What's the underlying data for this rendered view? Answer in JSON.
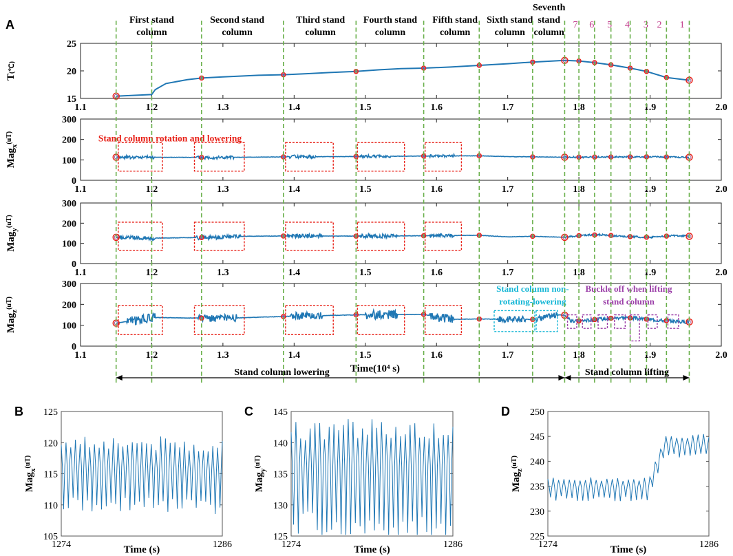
{
  "colors": {
    "line": "#1f77b4",
    "guide": "#6ab04c",
    "event_box": "#e8231a",
    "nonrot_box": "#17b7d6",
    "buckle_box": "#9b3fa8",
    "lift_numbers": "#c0398a",
    "ring": "#e8231a",
    "axis": "#222222"
  },
  "chart_data": [
    {
      "panel": "A",
      "type": "line",
      "xlabel": "Time(10⁴ s)",
      "xlim": [
        1.1,
        2.0
      ],
      "xticks": [
        "1.1",
        "1.2",
        "1.3",
        "1.4",
        "1.5",
        "1.6",
        "1.7",
        "1.8",
        "1.9",
        "2.0"
      ],
      "stage_labels": [
        {
          "x": 1.2,
          "lines": [
            "First stand",
            "column"
          ]
        },
        {
          "x": 1.32,
          "lines": [
            "Second stand",
            "column"
          ]
        },
        {
          "x": 1.437,
          "lines": [
            "Third  stand",
            "column"
          ]
        },
        {
          "x": 1.535,
          "lines": [
            "Fourth stand",
            "column"
          ]
        },
        {
          "x": 1.626,
          "lines": [
            "Fifth stand",
            "column"
          ]
        },
        {
          "x": 1.703,
          "lines": [
            "Sixth stand",
            "column"
          ]
        },
        {
          "x": 1.758,
          "lines": [
            "Seventh",
            "stand",
            "column"
          ]
        }
      ],
      "lift_numbers": [
        {
          "x": 1.795,
          "label": "7"
        },
        {
          "x": 1.818,
          "label": "6"
        },
        {
          "x": 1.843,
          "label": "5"
        },
        {
          "x": 1.868,
          "label": "4"
        },
        {
          "x": 1.894,
          "label": "3"
        },
        {
          "x": 1.913,
          "label": "2"
        },
        {
          "x": 1.945,
          "label": "1"
        }
      ],
      "guide_lines_x": [
        1.15,
        1.2,
        1.27,
        1.385,
        1.487,
        1.582,
        1.66,
        1.735,
        1.78,
        1.8,
        1.822,
        1.845,
        1.872,
        1.895,
        1.923,
        1.955
      ],
      "markers_x": [
        1.15,
        1.27,
        1.385,
        1.487,
        1.582,
        1.66,
        1.735,
        1.78,
        1.8,
        1.822,
        1.845,
        1.872,
        1.895,
        1.923,
        1.955
      ],
      "subplots": [
        {
          "id": "T",
          "ylabel_main": "T",
          "ylabel_unit": "(℃)",
          "ylim": [
            15,
            25
          ],
          "yticks": [
            "15",
            "20",
            "25"
          ],
          "series": {
            "x": [
              1.15,
              1.2,
              1.205,
              1.22,
              1.25,
              1.27,
              1.3,
              1.35,
              1.385,
              1.42,
              1.45,
              1.487,
              1.52,
              1.55,
              1.582,
              1.62,
              1.66,
              1.7,
              1.735,
              1.78,
              1.8,
              1.822,
              1.845,
              1.872,
              1.895,
              1.923,
              1.955
            ],
            "y": [
              15.4,
              15.7,
              16.6,
              17.7,
              18.4,
              18.7,
              18.9,
              19.2,
              19.3,
              19.5,
              19.7,
              19.9,
              20.2,
              20.4,
              20.5,
              20.7,
              21.0,
              21.3,
              21.6,
              21.9,
              21.8,
              21.5,
              21.1,
              20.5,
              19.9,
              18.8,
              18.3
            ]
          },
          "annotation": null,
          "boxes": []
        },
        {
          "id": "Magx",
          "ylabel_main": "Mag",
          "ylabel_sub": "x",
          "ylabel_unit": "(uT)",
          "ylim": [
            0,
            300
          ],
          "yticks": [
            "0",
            "100",
            "200",
            "300"
          ],
          "base": [
            [
              1.15,
              113
            ],
            [
              1.3,
              112
            ],
            [
              1.4,
              115
            ],
            [
              1.5,
              117
            ],
            [
              1.6,
              119
            ],
            [
              1.66,
              120
            ],
            [
              1.7,
              116
            ],
            [
              1.78,
              113
            ],
            [
              1.9,
              115
            ],
            [
              1.955,
              113
            ]
          ],
          "bursts": [
            [
              1.155,
              1.205,
              8
            ],
            [
              1.262,
              1.315,
              8
            ],
            [
              1.39,
              1.43,
              8
            ],
            [
              1.492,
              1.535,
              7
            ],
            [
              1.59,
              1.625,
              7
            ],
            [
              1.78,
              1.955,
              3
            ]
          ],
          "annotation": {
            "text": "Stand column rotation and lowering",
            "x": 1.125,
            "y": 190,
            "color": "event_box"
          },
          "boxes": [
            [
              1.153,
              1.215,
              45,
              185,
              "event_box"
            ],
            [
              1.26,
              1.33,
              45,
              185,
              "event_box"
            ],
            [
              1.388,
              1.455,
              45,
              185,
              "event_box"
            ],
            [
              1.489,
              1.555,
              45,
              185,
              "event_box"
            ],
            [
              1.584,
              1.635,
              45,
              185,
              "event_box"
            ]
          ]
        },
        {
          "id": "Magy",
          "ylabel_main": "Mag",
          "ylabel_sub": "y",
          "ylabel_unit": "(uT)",
          "ylim": [
            0,
            300
          ],
          "yticks": [
            "0",
            "100",
            "200",
            "300"
          ],
          "base": [
            [
              1.15,
              130
            ],
            [
              1.2,
              126
            ],
            [
              1.3,
              130
            ],
            [
              1.33,
              135
            ],
            [
              1.4,
              137
            ],
            [
              1.5,
              136
            ],
            [
              1.6,
              138
            ],
            [
              1.66,
              140
            ],
            [
              1.7,
              132
            ],
            [
              1.735,
              135
            ],
            [
              1.78,
              130
            ],
            [
              1.8,
              138
            ],
            [
              1.83,
              143
            ],
            [
              1.86,
              135
            ],
            [
              1.9,
              130
            ],
            [
              1.93,
              138
            ],
            [
              1.955,
              135
            ]
          ],
          "bursts": [
            [
              1.155,
              1.205,
              10
            ],
            [
              1.262,
              1.325,
              10
            ],
            [
              1.39,
              1.44,
              10
            ],
            [
              1.492,
              1.545,
              10
            ],
            [
              1.59,
              1.625,
              9
            ],
            [
              1.78,
              1.955,
              4
            ]
          ],
          "annotation": null,
          "boxes": [
            [
              1.153,
              1.215,
              65,
              205,
              "event_box"
            ],
            [
              1.26,
              1.33,
              65,
              205,
              "event_box"
            ],
            [
              1.388,
              1.455,
              65,
              205,
              "event_box"
            ],
            [
              1.489,
              1.555,
              65,
              205,
              "event_box"
            ],
            [
              1.584,
              1.635,
              65,
              205,
              "event_box"
            ]
          ]
        },
        {
          "id": "Magz",
          "ylabel_main": "Mag",
          "ylabel_sub": "z",
          "ylabel_unit": "(uT)",
          "ylim": [
            0,
            300
          ],
          "yticks": [
            "0",
            "100",
            "200",
            "300"
          ],
          "base": [
            [
              1.15,
              110
            ],
            [
              1.2,
              137
            ],
            [
              1.3,
              133
            ],
            [
              1.385,
              142
            ],
            [
              1.487,
              150
            ],
            [
              1.582,
              152
            ],
            [
              1.62,
              128
            ],
            [
              1.66,
              130
            ],
            [
              1.735,
              128
            ],
            [
              1.77,
              150
            ],
            [
              1.78,
              148
            ],
            [
              1.79,
              118
            ],
            [
              1.86,
              138
            ],
            [
              1.94,
              118
            ],
            [
              1.955,
              116
            ]
          ],
          "bursts": [
            [
              1.165,
              1.205,
              22
            ],
            [
              1.265,
              1.32,
              18
            ],
            [
              1.395,
              1.44,
              18
            ],
            [
              1.5,
              1.545,
              22
            ],
            [
              1.59,
              1.625,
              22
            ],
            [
              1.685,
              1.725,
              16
            ],
            [
              1.74,
              1.77,
              14
            ],
            [
              1.785,
              1.955,
              8
            ]
          ],
          "annotation": {
            "text": "",
            "x": 0,
            "y": 0
          },
          "annotation_lines": [
            {
              "text": "Stand column non-",
              "x": 1.735,
              "y": 260,
              "color": "nonrot_box"
            },
            {
              "text": "rotating-lowering",
              "x": 1.735,
              "y": 200,
              "color": "nonrot_box"
            },
            {
              "text": "Buckle off when lifting",
              "x": 1.87,
              "y": 260,
              "color": "buckle_box"
            },
            {
              "text": "stand column",
              "x": 1.87,
              "y": 200,
              "color": "buckle_box"
            }
          ],
          "boxes": [
            [
              1.153,
              1.215,
              55,
              195,
              "event_box"
            ],
            [
              1.26,
              1.33,
              55,
              195,
              "event_box"
            ],
            [
              1.388,
              1.455,
              55,
              195,
              "event_box"
            ],
            [
              1.489,
              1.555,
              55,
              195,
              "event_box"
            ],
            [
              1.584,
              1.635,
              55,
              195,
              "event_box"
            ],
            [
              1.681,
              1.738,
              70,
              170,
              "nonrot_box"
            ],
            [
              1.74,
              1.77,
              70,
              170,
              "nonrot_box"
            ],
            [
              1.784,
              1.797,
              85,
              150,
              "buckle_box"
            ],
            [
              1.805,
              1.817,
              85,
              150,
              "buckle_box"
            ],
            [
              1.827,
              1.84,
              85,
              150,
              "buckle_box"
            ],
            [
              1.85,
              1.865,
              85,
              150,
              "buckle_box"
            ],
            [
              1.872,
              1.885,
              25,
              150,
              "buckle_box"
            ],
            [
              1.897,
              1.91,
              85,
              150,
              "buckle_box"
            ],
            [
              1.925,
              1.94,
              85,
              150,
              "buckle_box"
            ]
          ]
        }
      ],
      "phases": [
        {
          "label": "Stand column lowering",
          "from": 1.15,
          "to": 1.78
        },
        {
          "label": "Stand column lifting",
          "from": 1.78,
          "to": 1.955
        }
      ]
    },
    {
      "panel": "B",
      "type": "line",
      "ylabel_main": "Mag",
      "ylabel_sub": "x",
      "ylabel_unit": "(uT)",
      "xlabel": "Time (s)",
      "xlim": [
        1274,
        1286
      ],
      "xticks": [
        "1274",
        "1286"
      ],
      "ylim": [
        105,
        125
      ],
      "yticks": [
        "105",
        "110",
        "115",
        "120",
        "125"
      ],
      "oscillation": {
        "cycles": 34,
        "mean": 115.3,
        "amplitude": 5.0,
        "trend": -0.8
      }
    },
    {
      "panel": "C",
      "type": "line",
      "ylabel_main": "Mag",
      "ylabel_sub": "y",
      "ylabel_unit": "(uT)",
      "xlabel": "Time (s)",
      "xlim": [
        1274,
        1286
      ],
      "xticks": [
        "1274",
        "1286"
      ],
      "ylim": [
        125,
        145
      ],
      "yticks": [
        "125",
        "130",
        "135",
        "140",
        "145"
      ],
      "oscillation": {
        "cycles": 34,
        "mean": 135.0,
        "amplitude": 7.2,
        "trend": 0
      }
    },
    {
      "panel": "D",
      "type": "line",
      "ylabel_main": "Mag",
      "ylabel_sub": "z",
      "ylabel_unit": "(uT)",
      "xlabel": "Time (s)",
      "xlim": [
        1274,
        1286
      ],
      "xticks": [
        "1274",
        "1286"
      ],
      "ylim": [
        225,
        250
      ],
      "yticks": [
        "225",
        "230",
        "235",
        "240",
        "245",
        "250"
      ],
      "oscillation": {
        "cycles": 30,
        "mean": 234.5,
        "amplitude": 2.0,
        "step_at": 1281.5,
        "step_to": 243.0
      }
    }
  ]
}
